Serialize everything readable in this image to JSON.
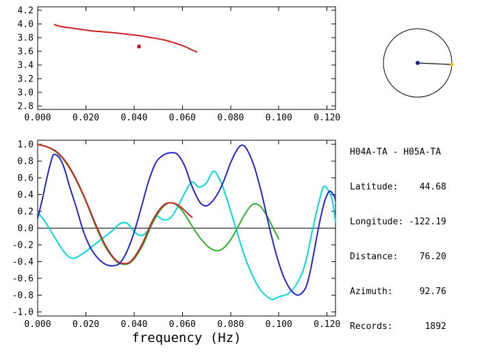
{
  "info": {
    "station_pair": "H04A-TA - H05A-TA",
    "fields": [
      {
        "label": "Latitude:",
        "value": "44.68"
      },
      {
        "label": "Longitude:",
        "value": "-122.19"
      },
      {
        "label": "Distance:",
        "value": "76.20"
      },
      {
        "label": "Azimuth:",
        "value": "92.76"
      },
      {
        "label": "Records:",
        "value": "1892"
      }
    ]
  },
  "azimuth_indicator": {
    "azimuth_deg": 92.76,
    "circle_color": "#000000",
    "center_dot_color": "#202080",
    "end_dot_color": "#fcc000"
  },
  "chart_data": [
    {
      "id": "dispersion",
      "type": "line",
      "title": "",
      "xlabel": "",
      "ylabel": "",
      "xlim": [
        0,
        0.1235
      ],
      "ylim": [
        2.75,
        4.25
      ],
      "grid": false,
      "xticks": {
        "values": [
          0,
          0.02,
          0.04,
          0.06,
          0.08,
          0.1,
          0.12
        ],
        "labels": [
          "0.000",
          "0.020",
          "0.040",
          "0.060",
          "0.080",
          "0.100",
          "0.120"
        ]
      },
      "yticks": {
        "values": [
          4.2,
          4.0,
          3.8,
          3.6,
          3.4,
          3.2,
          3.0,
          2.8
        ],
        "labels": [
          "4.2",
          "4.0",
          "3.8",
          "3.6",
          "3.4",
          "3.2",
          "3.0",
          "2.8"
        ]
      },
      "series": [
        {
          "name": "dispersion-curve",
          "color": "#cc2020",
          "points": [
            [
              0.007,
              3.99
            ],
            [
              0.01,
              3.96
            ],
            [
              0.014,
              3.94
            ],
            [
              0.018,
              3.92
            ],
            [
              0.022,
              3.9
            ],
            [
              0.027,
              3.885
            ],
            [
              0.032,
              3.87
            ],
            [
              0.037,
              3.85
            ],
            [
              0.042,
              3.83
            ],
            [
              0.047,
              3.8
            ],
            [
              0.052,
              3.77
            ],
            [
              0.057,
              3.72
            ],
            [
              0.061,
              3.67
            ],
            [
              0.064,
              3.62
            ],
            [
              0.066,
              3.59
            ]
          ]
        }
      ],
      "markers": [
        {
          "x": 0.042,
          "y": 3.67,
          "color": "#b01010",
          "shape": "square"
        }
      ]
    },
    {
      "id": "coherence",
      "type": "line",
      "title": "",
      "xlabel": "frequency (Hz)",
      "ylabel": "",
      "xlim": [
        0,
        0.1235
      ],
      "ylim": [
        -1.05,
        1.05
      ],
      "grid": false,
      "zeroline": true,
      "xticks": {
        "values": [
          0,
          0.02,
          0.04,
          0.06,
          0.08,
          0.1,
          0.12
        ],
        "labels": [
          "0.000",
          "0.020",
          "0.040",
          "0.060",
          "0.080",
          "0.100",
          "0.120"
        ]
      },
      "yticks": {
        "values": [
          1.0,
          0.8,
          0.6,
          0.4,
          0.2,
          0.0,
          -0.2,
          -0.4,
          -0.6,
          -0.8,
          -1.0
        ],
        "labels": [
          "1.0",
          "0.8",
          "0.6",
          "0.4",
          "0.2",
          "0.0",
          "-0.2",
          "-0.4",
          "-0.6",
          "-0.8",
          "-1.0"
        ]
      },
      "series": [
        {
          "name": "cyan-curve",
          "color": "#00d8d8",
          "points": [
            [
              0.0,
              0.19
            ],
            [
              0.003,
              0.08
            ],
            [
              0.006,
              -0.06
            ],
            [
              0.009,
              -0.2
            ],
            [
              0.012,
              -0.32
            ],
            [
              0.015,
              -0.36
            ],
            [
              0.019,
              -0.3
            ],
            [
              0.023,
              -0.21
            ],
            [
              0.027,
              -0.12
            ],
            [
              0.031,
              -0.03
            ],
            [
              0.034,
              0.05
            ],
            [
              0.037,
              0.06
            ],
            [
              0.04,
              -0.04
            ],
            [
              0.043,
              -0.09
            ],
            [
              0.046,
              -0.02
            ],
            [
              0.049,
              0.14
            ],
            [
              0.052,
              0.1
            ],
            [
              0.055,
              0.12
            ],
            [
              0.058,
              0.25
            ],
            [
              0.061,
              0.42
            ],
            [
              0.064,
              0.55
            ],
            [
              0.067,
              0.49
            ],
            [
              0.07,
              0.54
            ],
            [
              0.073,
              0.68
            ],
            [
              0.076,
              0.55
            ],
            [
              0.079,
              0.3
            ],
            [
              0.082,
              0.02
            ],
            [
              0.086,
              -0.35
            ],
            [
              0.09,
              -0.62
            ],
            [
              0.093,
              -0.76
            ],
            [
              0.097,
              -0.85
            ],
            [
              0.1,
              -0.82
            ],
            [
              0.104,
              -0.78
            ],
            [
              0.108,
              -0.64
            ],
            [
              0.111,
              -0.42
            ],
            [
              0.114,
              -0.02
            ],
            [
              0.117,
              0.35
            ],
            [
              0.119,
              0.5
            ],
            [
              0.122,
              0.35
            ],
            [
              0.1235,
              0.07
            ]
          ]
        },
        {
          "name": "green-curve",
          "color": "#2eaf2e",
          "points": [
            [
              0.0,
              1.0
            ],
            [
              0.004,
              0.97
            ],
            [
              0.008,
              0.9
            ],
            [
              0.012,
              0.77
            ],
            [
              0.016,
              0.57
            ],
            [
              0.02,
              0.32
            ],
            [
              0.024,
              0.03
            ],
            [
              0.028,
              -0.22
            ],
            [
              0.032,
              -0.38
            ],
            [
              0.035,
              -0.43
            ],
            [
              0.038,
              -0.42
            ],
            [
              0.041,
              -0.33
            ],
            [
              0.044,
              -0.18
            ],
            [
              0.047,
              0.02
            ],
            [
              0.05,
              0.18
            ],
            [
              0.053,
              0.28
            ],
            [
              0.056,
              0.3
            ],
            [
              0.059,
              0.24
            ],
            [
              0.062,
              0.12
            ],
            [
              0.065,
              -0.02
            ],
            [
              0.068,
              -0.14
            ],
            [
              0.071,
              -0.23
            ],
            [
              0.074,
              -0.27
            ],
            [
              0.077,
              -0.24
            ],
            [
              0.08,
              -0.14
            ],
            [
              0.083,
              0.01
            ],
            [
              0.086,
              0.17
            ],
            [
              0.089,
              0.28
            ],
            [
              0.092,
              0.27
            ],
            [
              0.095,
              0.15
            ],
            [
              0.098,
              -0.02
            ],
            [
              0.1,
              -0.13
            ]
          ]
        },
        {
          "name": "red-curve",
          "color": "#cc2020",
          "points": [
            [
              0.0,
              1.0
            ],
            [
              0.004,
              0.97
            ],
            [
              0.008,
              0.91
            ],
            [
              0.012,
              0.78
            ],
            [
              0.016,
              0.58
            ],
            [
              0.02,
              0.33
            ],
            [
              0.024,
              0.05
            ],
            [
              0.028,
              -0.2
            ],
            [
              0.032,
              -0.37
            ],
            [
              0.035,
              -0.42
            ],
            [
              0.038,
              -0.41
            ],
            [
              0.041,
              -0.31
            ],
            [
              0.044,
              -0.15
            ],
            [
              0.047,
              0.05
            ],
            [
              0.05,
              0.2
            ],
            [
              0.053,
              0.29
            ],
            [
              0.056,
              0.3
            ],
            [
              0.059,
              0.26
            ],
            [
              0.062,
              0.18
            ],
            [
              0.064,
              0.13
            ]
          ]
        },
        {
          "name": "blue-curve",
          "color": "#2222cc",
          "points": [
            [
              0.0,
              0.12
            ],
            [
              0.002,
              0.35
            ],
            [
              0.004,
              0.62
            ],
            [
              0.006,
              0.84
            ],
            [
              0.007,
              0.88
            ],
            [
              0.009,
              0.84
            ],
            [
              0.011,
              0.72
            ],
            [
              0.013,
              0.52
            ],
            [
              0.016,
              0.25
            ],
            [
              0.019,
              -0.04
            ],
            [
              0.022,
              -0.24
            ],
            [
              0.025,
              -0.36
            ],
            [
              0.028,
              -0.43
            ],
            [
              0.031,
              -0.45
            ],
            [
              0.034,
              -0.42
            ],
            [
              0.037,
              -0.28
            ],
            [
              0.04,
              -0.05
            ],
            [
              0.043,
              0.25
            ],
            [
              0.046,
              0.56
            ],
            [
              0.049,
              0.78
            ],
            [
              0.052,
              0.87
            ],
            [
              0.055,
              0.9
            ],
            [
              0.058,
              0.88
            ],
            [
              0.061,
              0.74
            ],
            [
              0.064,
              0.5
            ],
            [
              0.067,
              0.32
            ],
            [
              0.069,
              0.27
            ],
            [
              0.071,
              0.28
            ],
            [
              0.074,
              0.38
            ],
            [
              0.077,
              0.55
            ],
            [
              0.08,
              0.78
            ],
            [
              0.083,
              0.95
            ],
            [
              0.085,
              0.99
            ],
            [
              0.087,
              0.93
            ],
            [
              0.09,
              0.72
            ],
            [
              0.093,
              0.4
            ],
            [
              0.096,
              0.02
            ],
            [
              0.099,
              -0.32
            ],
            [
              0.102,
              -0.58
            ],
            [
              0.105,
              -0.74
            ],
            [
              0.108,
              -0.8
            ],
            [
              0.111,
              -0.72
            ],
            [
              0.113,
              -0.52
            ],
            [
              0.115,
              -0.22
            ],
            [
              0.117,
              0.08
            ],
            [
              0.119,
              0.32
            ],
            [
              0.121,
              0.44
            ],
            [
              0.123,
              0.38
            ],
            [
              0.1235,
              0.33
            ]
          ]
        }
      ]
    }
  ]
}
